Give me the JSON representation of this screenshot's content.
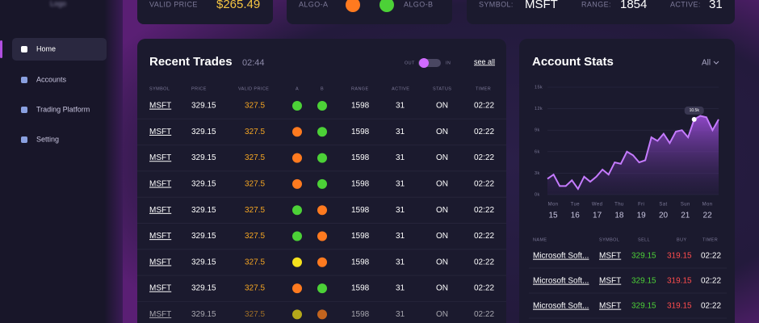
{
  "sidebar": {
    "logo": "Logo",
    "nav": [
      "Home",
      "Accounts",
      "Trading Platform",
      "Setting"
    ],
    "active": 0
  },
  "top_cards": {
    "valid_price_label": "VALID PRICE",
    "valid_price": "$265.49",
    "algo_a": "ALGO-A",
    "algo_a_color": "#ff7a1f",
    "algo_b": "ALGO-B",
    "algo_b_color": "#4cd137",
    "symbol_label": "SYMBOL:",
    "symbol": "MSFT",
    "range_label": "RANGE:",
    "range": 1854,
    "active_label": "ACTIVE:",
    "active": 31
  },
  "recent_trades": {
    "title": "Recent Trades",
    "time": "02:44",
    "toggle_out": "OUT",
    "toggle_in": "IN",
    "see_all": "see all",
    "columns": [
      "SYMBOL",
      "PRICE",
      "VALID PRICE",
      "A",
      "B",
      "RANGE",
      "ACTIVE",
      "STATUS",
      "TIMER"
    ],
    "rows": [
      {
        "symbol": "MSFT",
        "price": 329.15,
        "valid_price": 327.5,
        "a": "#4cd137",
        "b": "#4cd137",
        "range": 1598,
        "active": 31,
        "status": "ON",
        "timer": "02:22"
      },
      {
        "symbol": "MSFT",
        "price": 329.15,
        "valid_price": 327.5,
        "a": "#ff7a1f",
        "b": "#4cd137",
        "range": 1598,
        "active": 31,
        "status": "ON",
        "timer": "02:22"
      },
      {
        "symbol": "MSFT",
        "price": 329.15,
        "valid_price": 327.5,
        "a": "#ff7a1f",
        "b": "#4cd137",
        "range": 1598,
        "active": 31,
        "status": "ON",
        "timer": "02:22"
      },
      {
        "symbol": "MSFT",
        "price": 329.15,
        "valid_price": 327.5,
        "a": "#ff7a1f",
        "b": "#4cd137",
        "range": 1598,
        "active": 31,
        "status": "ON",
        "timer": "02:22"
      },
      {
        "symbol": "MSFT",
        "price": 329.15,
        "valid_price": 327.5,
        "a": "#4cd137",
        "b": "#ff7a1f",
        "range": 1598,
        "active": 31,
        "status": "ON",
        "timer": "02:22"
      },
      {
        "symbol": "MSFT",
        "price": 329.15,
        "valid_price": 327.5,
        "a": "#4cd137",
        "b": "#ff7a1f",
        "range": 1598,
        "active": 31,
        "status": "ON",
        "timer": "02:22"
      },
      {
        "symbol": "MSFT",
        "price": 329.15,
        "valid_price": 327.5,
        "a": "#f5e11d",
        "b": "#ff7a1f",
        "range": 1598,
        "active": 31,
        "status": "ON",
        "timer": "02:22"
      },
      {
        "symbol": "MSFT",
        "price": 329.15,
        "valid_price": 327.5,
        "a": "#ff7a1f",
        "b": "#4cd137",
        "range": 1598,
        "active": 31,
        "status": "ON",
        "timer": "02:22"
      },
      {
        "symbol": "MSFT",
        "price": 329.15,
        "valid_price": 327.5,
        "a": "#b5a81a",
        "b": "#c2641e",
        "range": 1598,
        "active": 31,
        "status": "ON",
        "timer": "02:22"
      }
    ]
  },
  "account_stats": {
    "title": "Account Stats",
    "filter": "All",
    "chart": {
      "type": "area",
      "color": "#c57bff",
      "ylim": [
        0,
        15000
      ],
      "yticks": [
        {
          "value": 0,
          "label": "0k"
        },
        {
          "value": 3000,
          "label": "3k"
        },
        {
          "value": 6000,
          "label": "6k"
        },
        {
          "value": 9000,
          "label": "9k"
        },
        {
          "value": 12000,
          "label": "12k"
        },
        {
          "value": 15000,
          "label": "15k"
        }
      ],
      "x_labels": [
        {
          "day": "Mon",
          "date": 15
        },
        {
          "day": "Tue",
          "date": 16
        },
        {
          "day": "Wed",
          "date": 17
        },
        {
          "day": "Thu",
          "date": 18
        },
        {
          "day": "Fri",
          "date": 19
        },
        {
          "day": "Sat",
          "date": 20
        },
        {
          "day": "Sun",
          "date": 21
        },
        {
          "day": "Mon",
          "date": 22
        }
      ],
      "values": [
        2200,
        2800,
        1200,
        1200,
        2000,
        800,
        2500,
        1800,
        2500,
        3500,
        2800,
        4500,
        4300,
        6000,
        5500,
        4500,
        4800,
        8000,
        7500,
        8500,
        7200,
        8800,
        9000,
        8000,
        10500,
        11000,
        10800,
        9000,
        10500
      ],
      "tooltip": "10.5k",
      "tooltip_index": 24
    },
    "table": {
      "columns": [
        "NAME",
        "SYMBOL",
        "SELL",
        "BUY",
        "TIMER"
      ],
      "rows": [
        {
          "name": "Microsoft Soft...",
          "symbol": "MSFT",
          "sell": 329.15,
          "buy": 319.15,
          "timer": "02:22"
        },
        {
          "name": "Microsoft Soft...",
          "symbol": "MSFT",
          "sell": 329.15,
          "buy": 319.15,
          "timer": "02:22"
        },
        {
          "name": "Microsoft Soft...",
          "symbol": "MSFT",
          "sell": 329.15,
          "buy": 319.15,
          "timer": "02:22"
        }
      ]
    }
  }
}
